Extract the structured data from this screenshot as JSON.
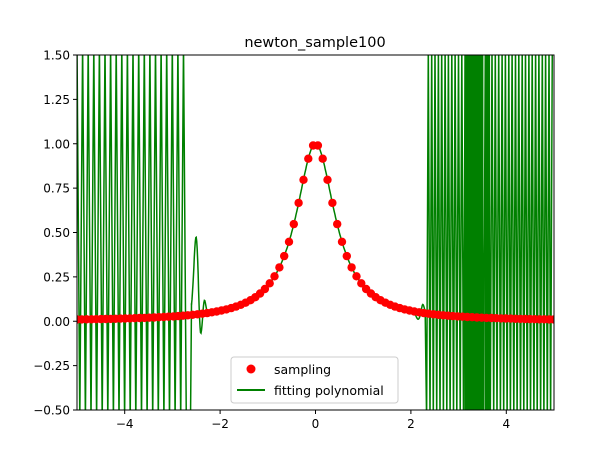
{
  "chart_data": {
    "type": "line",
    "title": "newton_sample100",
    "xlabel": "",
    "ylabel": "",
    "xlim": [
      -5,
      5
    ],
    "ylim": [
      -0.5,
      1.5
    ],
    "x_ticks": [
      -4,
      -2,
      0,
      2,
      4
    ],
    "x_tick_labels": [
      "−4",
      "−2",
      "0",
      "2",
      "4"
    ],
    "y_ticks": [
      -0.5,
      -0.25,
      0.0,
      0.25,
      0.5,
      0.75,
      1.0,
      1.25,
      1.5
    ],
    "y_tick_labels": [
      "−0.50",
      "−0.25",
      "0.00",
      "0.25",
      "0.50",
      "0.75",
      "1.00",
      "1.25",
      "1.50"
    ],
    "grid": false,
    "legend_position": "lower center",
    "series": [
      {
        "name": "sampling",
        "kind": "scatter",
        "color": "#ff0000",
        "function": "1/(1+4x^2)",
        "x_range": [
          -5,
          5
        ],
        "num_points": 100
      },
      {
        "name": "fitting polynomial",
        "kind": "line",
        "color": "#008000",
        "description_regions": [
          {
            "x_range": [
              -5,
              -2.65
            ],
            "behavior": "oscillates beyond axis limits"
          },
          {
            "x_range": [
              -2.65,
              2.3
            ],
            "behavior": "follows 1/(1+4x^2), small wiggles near -2.5 (peak ~0.56) and ~2.1"
          },
          {
            "x_range": [
              2.3,
              5
            ],
            "behavior": "oscillates beyond axis limits"
          }
        ]
      }
    ]
  },
  "legend": {
    "items": [
      {
        "label": "sampling",
        "color": "#ff0000",
        "marker": "circle"
      },
      {
        "label": "fitting polynomial",
        "color": "#008000",
        "marker": "line"
      }
    ]
  }
}
